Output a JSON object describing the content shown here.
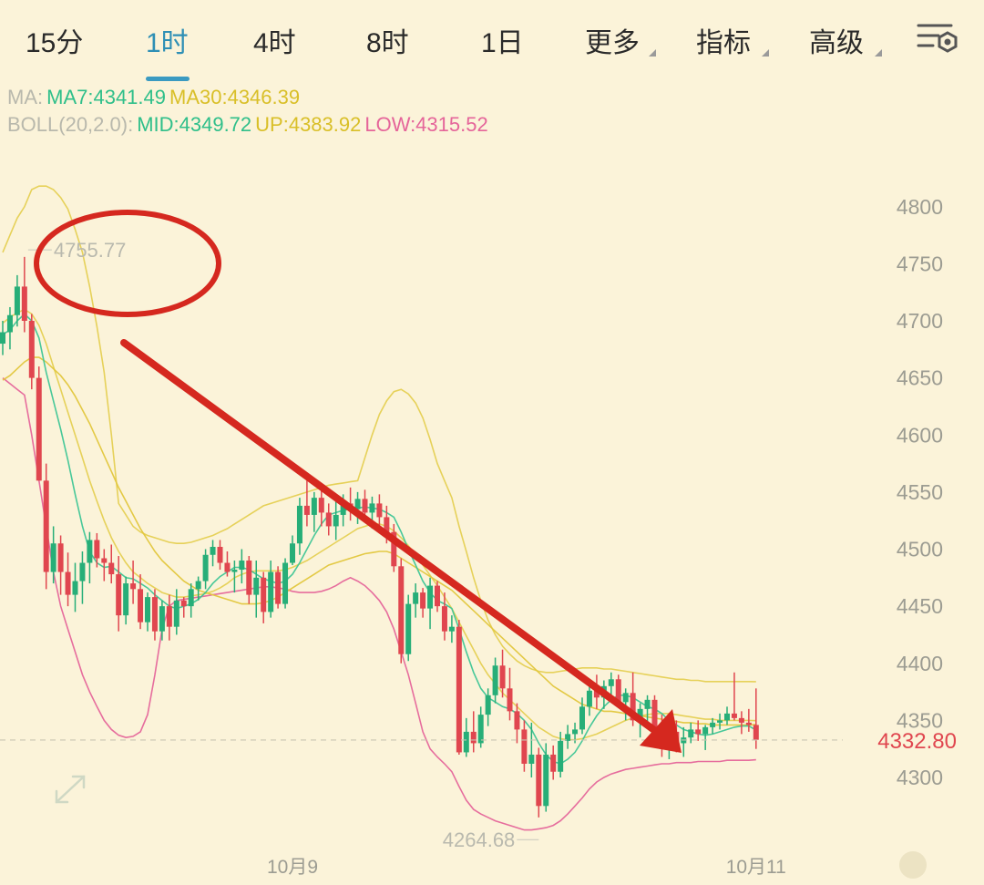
{
  "tabs": [
    {
      "label": "15分",
      "active": false
    },
    {
      "label": "1时",
      "active": true
    },
    {
      "label": "4时",
      "active": false
    },
    {
      "label": "8时",
      "active": false
    },
    {
      "label": "1日",
      "active": false
    },
    {
      "label": "更多",
      "active": false,
      "dropdown": true
    },
    {
      "label": "指标",
      "active": false,
      "dropdown": true
    },
    {
      "label": "高级",
      "active": false,
      "dropdown": true
    }
  ],
  "legend": {
    "ma_prefix": "MA:",
    "ma7": "MA7:4341.49",
    "ma30": "MA30:4346.39",
    "boll_prefix": "BOLL(20,2.0):",
    "mid": "MID:4349.72",
    "up": "UP:4383.92",
    "low": "LOW:4315.52"
  },
  "colors": {
    "up": "#27ae78",
    "down": "#e0464f",
    "ma7": "#3ec596",
    "ma30": "#e2c63c",
    "boll_up": "#e5cf52",
    "boll_mid": "#e5cf52",
    "boll_low": "#e5659a",
    "annotation": "#d5281f"
  },
  "icons": {
    "settings": "chart-settings-icon",
    "expand": "expand-arrows-icon",
    "logo": "watermark-logo-icon"
  },
  "chart_data": {
    "type": "candlestick",
    "ylim": [
      4250,
      4820
    ],
    "y_ticks": [
      4300,
      4350,
      4400,
      4450,
      4500,
      4550,
      4600,
      4650,
      4700,
      4750,
      4800
    ],
    "x_tick_labels": [
      {
        "label": "10月9",
        "index": 40
      },
      {
        "label": "10月11",
        "index": 104
      }
    ],
    "last_price": "4332.80",
    "last_price_value": 4332.8,
    "max_label": "4755.77",
    "max_value": 4755.77,
    "max_index": 3,
    "min_label": "4264.68",
    "min_index": 74,
    "min_value": 4264.68,
    "candles": [
      [
        4680,
        4700,
        4670,
        4690
      ],
      [
        4690,
        4712,
        4675,
        4705
      ],
      [
        4705,
        4740,
        4695,
        4730
      ],
      [
        4730,
        4756,
        4690,
        4700
      ],
      [
        4700,
        4706,
        4640,
        4650
      ],
      [
        4650,
        4660,
        4560,
        4560
      ],
      [
        4560,
        4575,
        4465,
        4480
      ],
      [
        4480,
        4520,
        4470,
        4505
      ],
      [
        4505,
        4512,
        4460,
        4480
      ],
      [
        4480,
        4497,
        4450,
        4460
      ],
      [
        4460,
        4488,
        4445,
        4472
      ],
      [
        4472,
        4498,
        4452,
        4488
      ],
      [
        4488,
        4515,
        4470,
        4508
      ],
      [
        4508,
        4514,
        4484,
        4492
      ],
      [
        4492,
        4500,
        4472,
        4488
      ],
      [
        4488,
        4504,
        4470,
        4478
      ],
      [
        4478,
        4494,
        4428,
        4442
      ],
      [
        4442,
        4476,
        4434,
        4470
      ],
      [
        4470,
        4490,
        4452,
        4465
      ],
      [
        4465,
        4478,
        4430,
        4436
      ],
      [
        4436,
        4462,
        4428,
        4458
      ],
      [
        4458,
        4465,
        4420,
        4428
      ],
      [
        4428,
        4455,
        4420,
        4450
      ],
      [
        4450,
        4460,
        4420,
        4432
      ],
      [
        4432,
        4465,
        4425,
        4455
      ],
      [
        4455,
        4458,
        4440,
        4450
      ],
      [
        4450,
        4470,
        4440,
        4465
      ],
      [
        4465,
        4476,
        4455,
        4472
      ],
      [
        4472,
        4500,
        4465,
        4495
      ],
      [
        4495,
        4508,
        4485,
        4502
      ],
      [
        4502,
        4508,
        4482,
        4488
      ],
      [
        4488,
        4498,
        4476,
        4480
      ],
      [
        4480,
        4490,
        4462,
        4482
      ],
      [
        4482,
        4500,
        4470,
        4490
      ],
      [
        4490,
        4494,
        4452,
        4460
      ],
      [
        4460,
        4490,
        4440,
        4475
      ],
      [
        4475,
        4480,
        4435,
        4445
      ],
      [
        4445,
        4490,
        4440,
        4480
      ],
      [
        4480,
        4485,
        4448,
        4452
      ],
      [
        4452,
        4492,
        4448,
        4488
      ],
      [
        4488,
        4512,
        4486,
        4505
      ],
      [
        4505,
        4545,
        4495,
        4538
      ],
      [
        4538,
        4560,
        4520,
        4530
      ],
      [
        4530,
        4550,
        4515,
        4545
      ],
      [
        4545,
        4552,
        4520,
        4532
      ],
      [
        4532,
        4540,
        4512,
        4520
      ],
      [
        4520,
        4542,
        4508,
        4530
      ],
      [
        4530,
        4548,
        4520,
        4540
      ],
      [
        4540,
        4554,
        4525,
        4535
      ],
      [
        4535,
        4550,
        4522,
        4544
      ],
      [
        4544,
        4552,
        4528,
        4532
      ],
      [
        4532,
        4546,
        4518,
        4540
      ],
      [
        4540,
        4548,
        4520,
        4528
      ],
      [
        4528,
        4538,
        4505,
        4515
      ],
      [
        4515,
        4522,
        4480,
        4485
      ],
      [
        4485,
        4492,
        4400,
        4408
      ],
      [
        4408,
        4460,
        4402,
        4452
      ],
      [
        4452,
        4470,
        4440,
        4462
      ],
      [
        4462,
        4466,
        4440,
        4448
      ],
      [
        4448,
        4475,
        4430,
        4468
      ],
      [
        4468,
        4472,
        4445,
        4450
      ],
      [
        4450,
        4462,
        4420,
        4428
      ],
      [
        4428,
        4442,
        4418,
        4432
      ],
      [
        4432,
        4438,
        4320,
        4322
      ],
      [
        4322,
        4352,
        4318,
        4340
      ],
      [
        4340,
        4358,
        4322,
        4330
      ],
      [
        4330,
        4362,
        4326,
        4355
      ],
      [
        4355,
        4378,
        4345,
        4372
      ],
      [
        4372,
        4405,
        4365,
        4398
      ],
      [
        4398,
        4412,
        4370,
        4378
      ],
      [
        4378,
        4396,
        4350,
        4358
      ],
      [
        4358,
        4365,
        4330,
        4342
      ],
      [
        4342,
        4350,
        4305,
        4312
      ],
      [
        4312,
        4348,
        4300,
        4320
      ],
      [
        4320,
        4326,
        4265,
        4275
      ],
      [
        4275,
        4330,
        4270,
        4320
      ],
      [
        4320,
        4328,
        4298,
        4305
      ],
      [
        4305,
        4340,
        4300,
        4332
      ],
      [
        4332,
        4346,
        4325,
        4338
      ],
      [
        4338,
        4348,
        4330,
        4342
      ],
      [
        4342,
        4370,
        4338,
        4362
      ],
      [
        4362,
        4384,
        4354,
        4376
      ],
      [
        4376,
        4390,
        4360,
        4370
      ],
      [
        4370,
        4385,
        4360,
        4380
      ],
      [
        4380,
        4392,
        4368,
        4386
      ],
      [
        4386,
        4390,
        4362,
        4366
      ],
      [
        4366,
        4378,
        4350,
        4374
      ],
      [
        4374,
        4392,
        4345,
        4350
      ],
      [
        4350,
        4365,
        4335,
        4360
      ],
      [
        4360,
        4372,
        4345,
        4368
      ],
      [
        4368,
        4372,
        4335,
        4340
      ],
      [
        4340,
        4355,
        4318,
        4325
      ],
      [
        4325,
        4345,
        4316,
        4340
      ],
      [
        4340,
        4350,
        4322,
        4330
      ],
      [
        4330,
        4344,
        4318,
        4335
      ],
      [
        4335,
        4348,
        4330,
        4342
      ],
      [
        4342,
        4350,
        4332,
        4338
      ],
      [
        4338,
        4346,
        4324,
        4344
      ],
      [
        4344,
        4352,
        4338,
        4348
      ],
      [
        4348,
        4356,
        4342,
        4350
      ],
      [
        4350,
        4362,
        4346,
        4356
      ],
      [
        4356,
        4392,
        4350,
        4352
      ],
      [
        4352,
        4358,
        4338,
        4348
      ],
      [
        4348,
        4360,
        4340,
        4346
      ],
      [
        4346,
        4378,
        4325,
        4333
      ]
    ],
    "ma7": [
      4688,
      4692,
      4700,
      4706,
      4700,
      4685,
      4655,
      4630,
      4605,
      4578,
      4548,
      4520,
      4498,
      4488,
      4484,
      4485,
      4480,
      4475,
      4474,
      4470,
      4466,
      4460,
      4455,
      4450,
      4448,
      4450,
      4452,
      4456,
      4462,
      4470,
      4476,
      4480,
      4484,
      4484,
      4482,
      4478,
      4474,
      4472,
      4470,
      4472,
      4478,
      4488,
      4500,
      4512,
      4522,
      4530,
      4532,
      4534,
      4535,
      4536,
      4537,
      4536,
      4535,
      4532,
      4528,
      4515,
      4500,
      4486,
      4472,
      4462,
      4455,
      4452,
      4448,
      4430,
      4410,
      4392,
      4378,
      4370,
      4366,
      4362,
      4360,
      4356,
      4350,
      4342,
      4330,
      4320,
      4314,
      4312,
      4316,
      4322,
      4332,
      4344,
      4354,
      4362,
      4368,
      4372,
      4372,
      4370,
      4366,
      4362,
      4360,
      4356,
      4350,
      4346,
      4342,
      4340,
      4338,
      4337,
      4338,
      4340,
      4342,
      4344,
      4345,
      4345,
      4341.49
    ],
    "ma30": [
      4648,
      4652,
      4658,
      4664,
      4668,
      4668,
      4664,
      4658,
      4652,
      4644,
      4634,
      4622,
      4610,
      4596,
      4582,
      4568,
      4554,
      4542,
      4530,
      4518,
      4508,
      4498,
      4490,
      4484,
      4478,
      4472,
      4468,
      4464,
      4462,
      4460,
      4458,
      4456,
      4454,
      4452,
      4452,
      4452,
      4453,
      4455,
      4458,
      4462,
      4466,
      4470,
      4474,
      4478,
      4482,
      4486,
      4488,
      4490,
      4492,
      4494,
      4496,
      4497,
      4498,
      4498,
      4496,
      4492,
      4488,
      4484,
      4480,
      4476,
      4472,
      4468,
      4464,
      4458,
      4452,
      4446,
      4440,
      4434,
      4428,
      4422,
      4416,
      4410,
      4404,
      4398,
      4392,
      4386,
      4380,
      4376,
      4372,
      4368,
      4364,
      4362,
      4360,
      4358,
      4358,
      4357,
      4356,
      4355,
      4354,
      4353,
      4352,
      4351,
      4350,
      4349,
      4348,
      4348,
      4347,
      4347,
      4346,
      4346,
      4346,
      4346,
      4346,
      4346,
      4346.39
    ],
    "boll_mid": [
      4698,
      4703,
      4707,
      4710,
      4706,
      4696,
      4680,
      4660,
      4640,
      4620,
      4600,
      4580,
      4560,
      4542,
      4525,
      4510,
      4498,
      4488,
      4480,
      4475,
      4470,
      4466,
      4462,
      4460,
      4458,
      4458,
      4459,
      4460,
      4461,
      4463,
      4466,
      4470,
      4475,
      4478,
      4480,
      4481,
      4481,
      4481,
      4481,
      4482,
      4484,
      4487,
      4490,
      4494,
      4498,
      4502,
      4506,
      4510,
      4514,
      4518,
      4520,
      4522,
      4522,
      4520,
      4516,
      4510,
      4503,
      4495,
      4486,
      4477,
      4468,
      4458,
      4448,
      4436,
      4424,
      4412,
      4400,
      4390,
      4382,
      4374,
      4368,
      4362,
      4356,
      4350,
      4344,
      4340,
      4336,
      4334,
      4333,
      4333,
      4334,
      4336,
      4338,
      4341,
      4344,
      4347,
      4350,
      4352,
      4354,
      4355,
      4356,
      4356,
      4356,
      4355,
      4354,
      4353,
      4352,
      4351,
      4351,
      4350,
      4350,
      4350,
      4350,
      4350,
      4349.72
    ],
    "boll_up": [
      4760,
      4775,
      4790,
      4800,
      4815,
      4818,
      4818,
      4815,
      4808,
      4798,
      4780,
      4760,
      4730,
      4695,
      4655,
      4600,
      4540,
      4530,
      4520,
      4515,
      4512,
      4510,
      4508,
      4506,
      4505,
      4505,
      4506,
      4508,
      4510,
      4512,
      4515,
      4518,
      4522,
      4526,
      4530,
      4534,
      4538,
      4540,
      4542,
      4544,
      4546,
      4548,
      4550,
      4552,
      4554,
      4556,
      4557,
      4558,
      4559,
      4560,
      4580,
      4600,
      4618,
      4630,
      4638,
      4640,
      4636,
      4628,
      4615,
      4596,
      4575,
      4560,
      4545,
      4520,
      4498,
      4475,
      4455,
      4438,
      4425,
      4415,
      4408,
      4402,
      4398,
      4395,
      4393,
      4392,
      4392,
      4393,
      4394,
      4395,
      4396,
      4396,
      4396,
      4395,
      4395,
      4394,
      4393,
      4392,
      4391,
      4390,
      4389,
      4388,
      4387,
      4386,
      4386,
      4385,
      4385,
      4384,
      4384,
      4384,
      4384,
      4384,
      4384,
      4384,
      4383.92
    ],
    "boll_low": [
      4650,
      4645,
      4640,
      4635,
      4600,
      4560,
      4520,
      4480,
      4450,
      4430,
      4410,
      4390,
      4375,
      4362,
      4350,
      4342,
      4337,
      4335,
      4336,
      4340,
      4355,
      4390,
      4430,
      4450,
      4455,
      4456,
      4457,
      4458,
      4459,
      4460,
      4461,
      4462,
      4463,
      4464,
      4465,
      4466,
      4467,
      4467,
      4466,
      4465,
      4463,
      4462,
      4462,
      4462,
      4463,
      4465,
      4468,
      4472,
      4475,
      4472,
      4468,
      4462,
      4455,
      4445,
      4430,
      4410,
      4390,
      4365,
      4340,
      4325,
      4318,
      4312,
      4305,
      4292,
      4280,
      4272,
      4268,
      4265,
      4262,
      4260,
      4258,
      4256,
      4254,
      4254,
      4255,
      4256,
      4258,
      4262,
      4268,
      4275,
      4282,
      4290,
      4296,
      4300,
      4303,
      4305,
      4307,
      4308,
      4309,
      4310,
      4311,
      4312,
      4312,
      4313,
      4313,
      4313,
      4314,
      4314,
      4314,
      4314,
      4315,
      4315,
      4315,
      4315,
      4315.52
    ]
  }
}
